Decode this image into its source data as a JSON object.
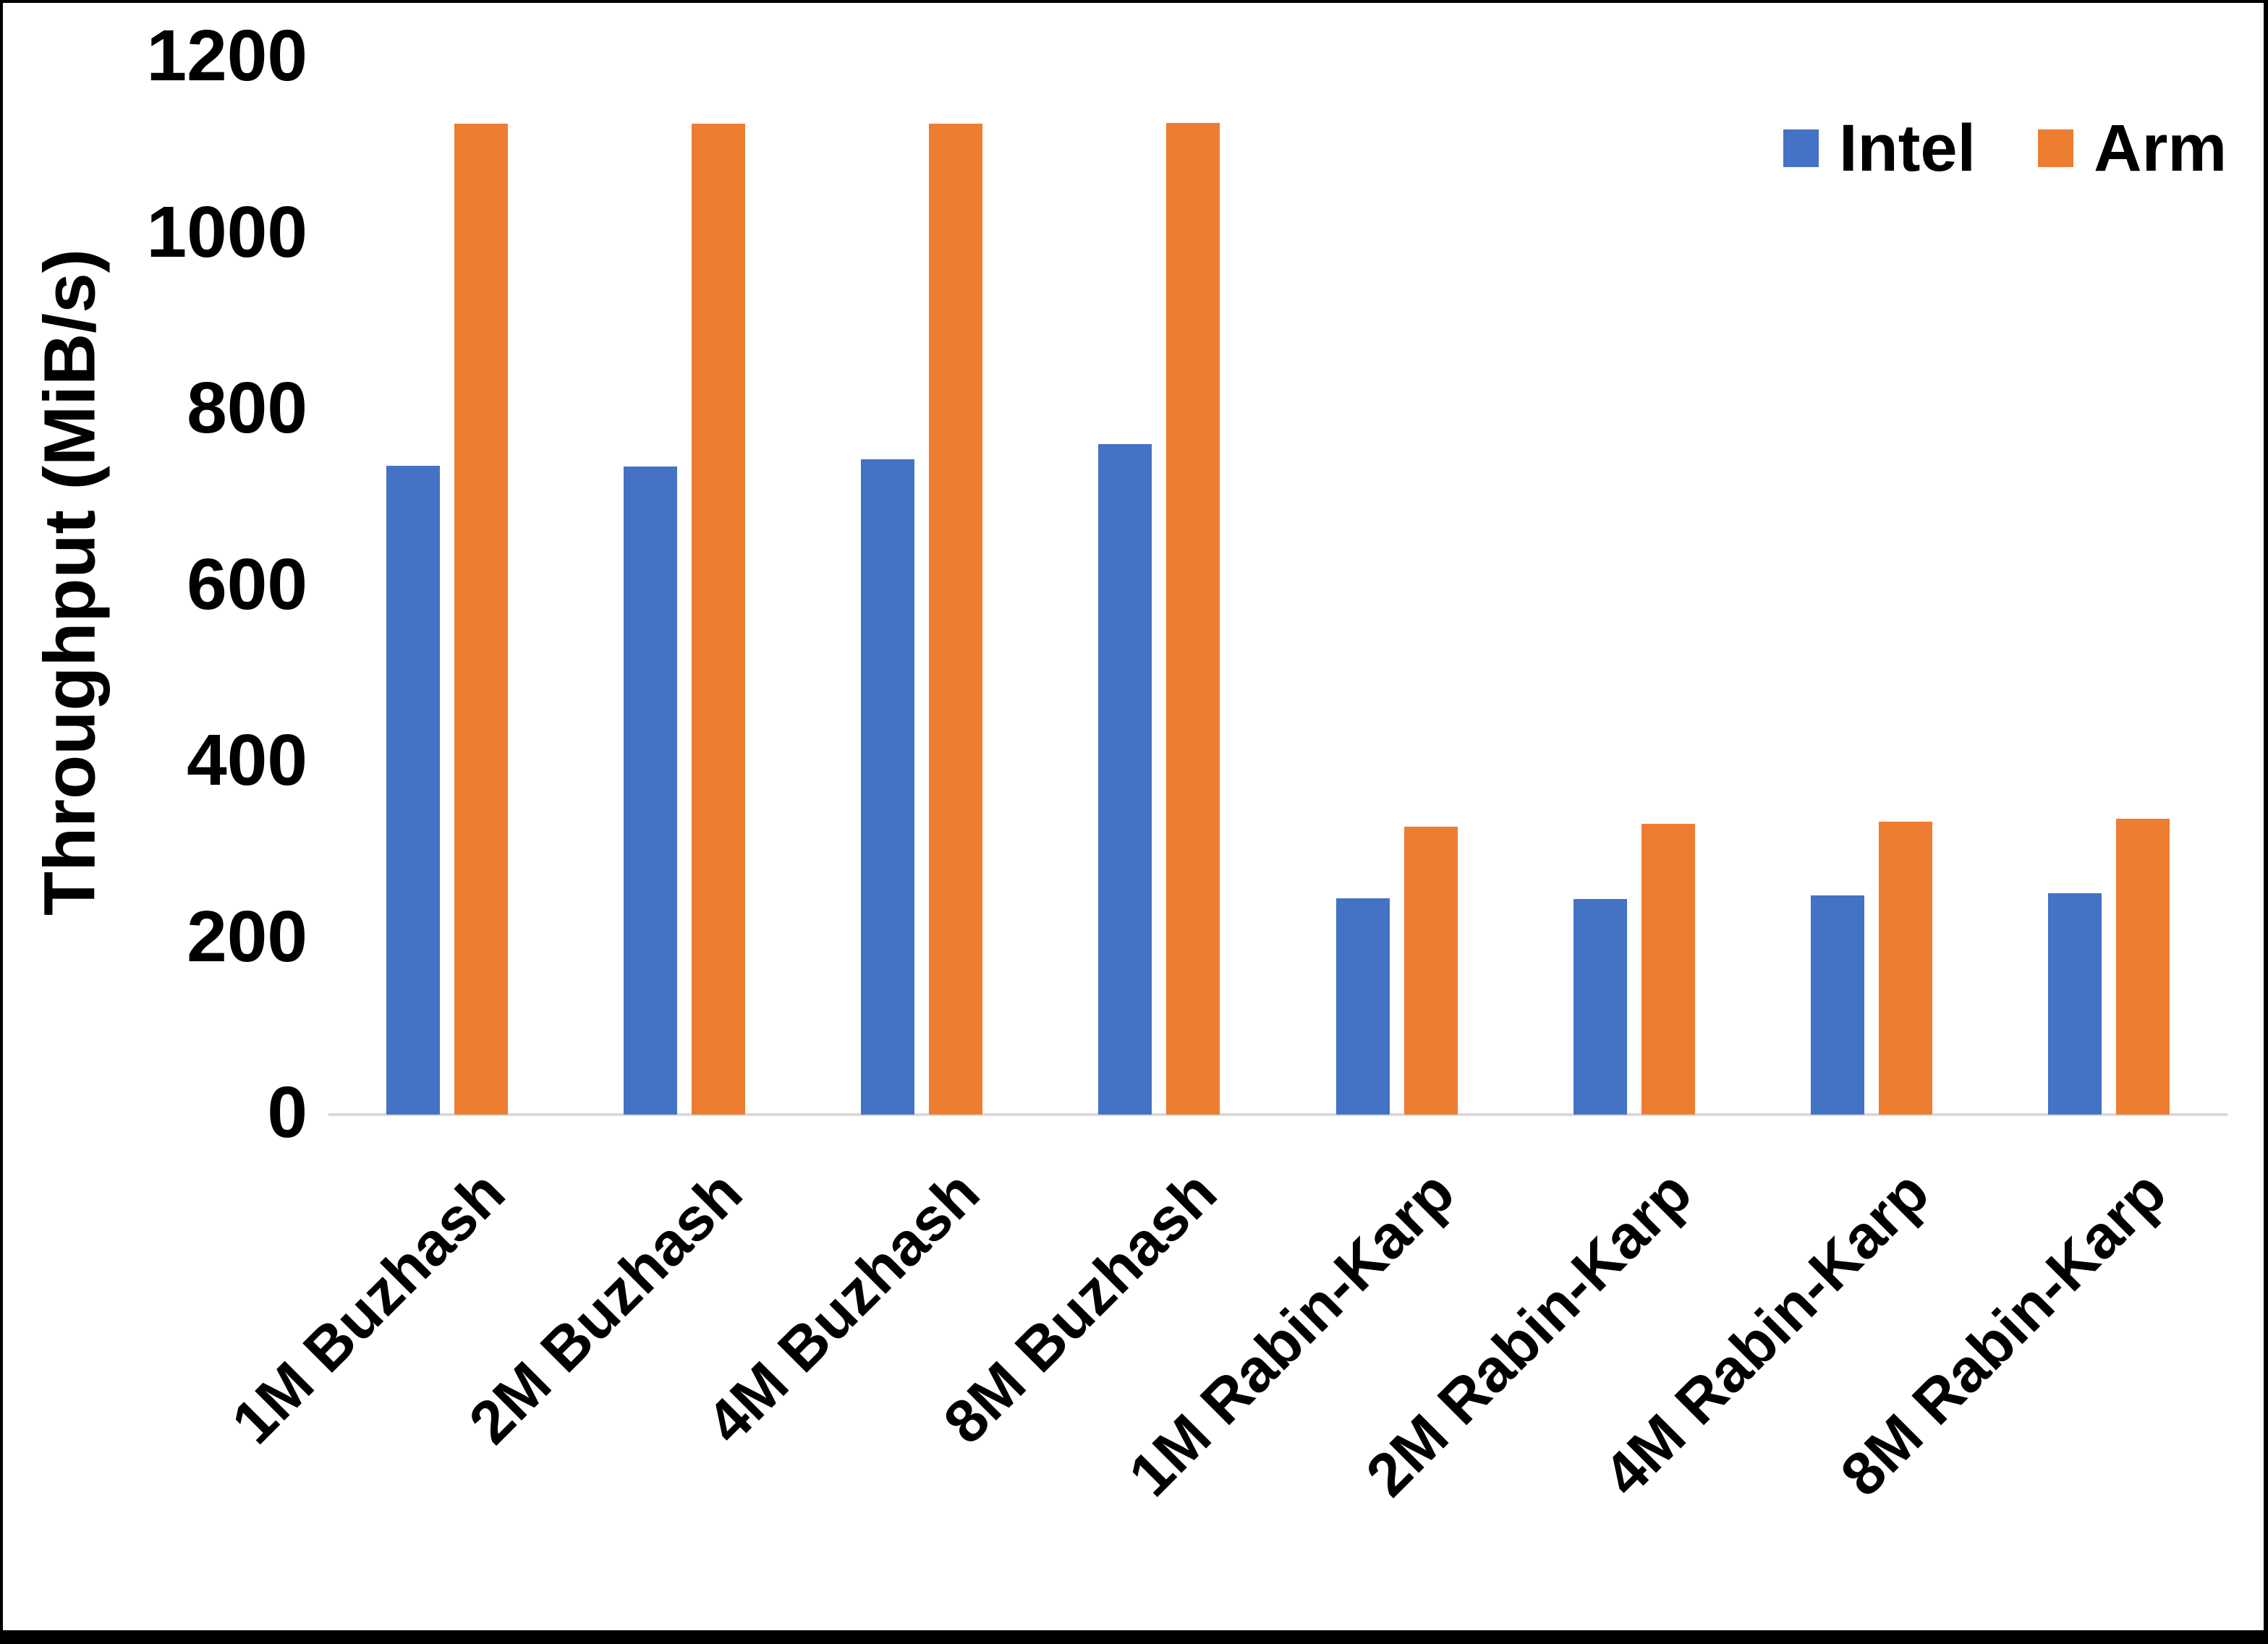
{
  "chart_data": {
    "type": "bar",
    "title": "",
    "xlabel": "",
    "ylabel": "Throughput (MiB/s)",
    "ylim": [
      0,
      1200
    ],
    "yticks": [
      0,
      200,
      400,
      600,
      800,
      1000,
      1200
    ],
    "grid": false,
    "legend_position": "top-right",
    "categories": [
      "1M Buzhash",
      "2M Buzhash",
      "4M Buzhash",
      "8M Buzhash",
      "1M Rabin-Karp",
      "2M Rabin-Karp",
      "4M Rabin-Karp",
      "8M Rabin-Karp"
    ],
    "series": [
      {
        "name": "Intel",
        "color": "#4472C4",
        "values": [
          737,
          736,
          744,
          761,
          246,
          245,
          249,
          251
        ]
      },
      {
        "name": "Arm",
        "color": "#ED7D31",
        "values": [
          1125,
          1125,
          1125,
          1126,
          327,
          330,
          333,
          336
        ]
      }
    ],
    "axis_line_color": "#D9D9D9",
    "text_color": "#000000"
  }
}
